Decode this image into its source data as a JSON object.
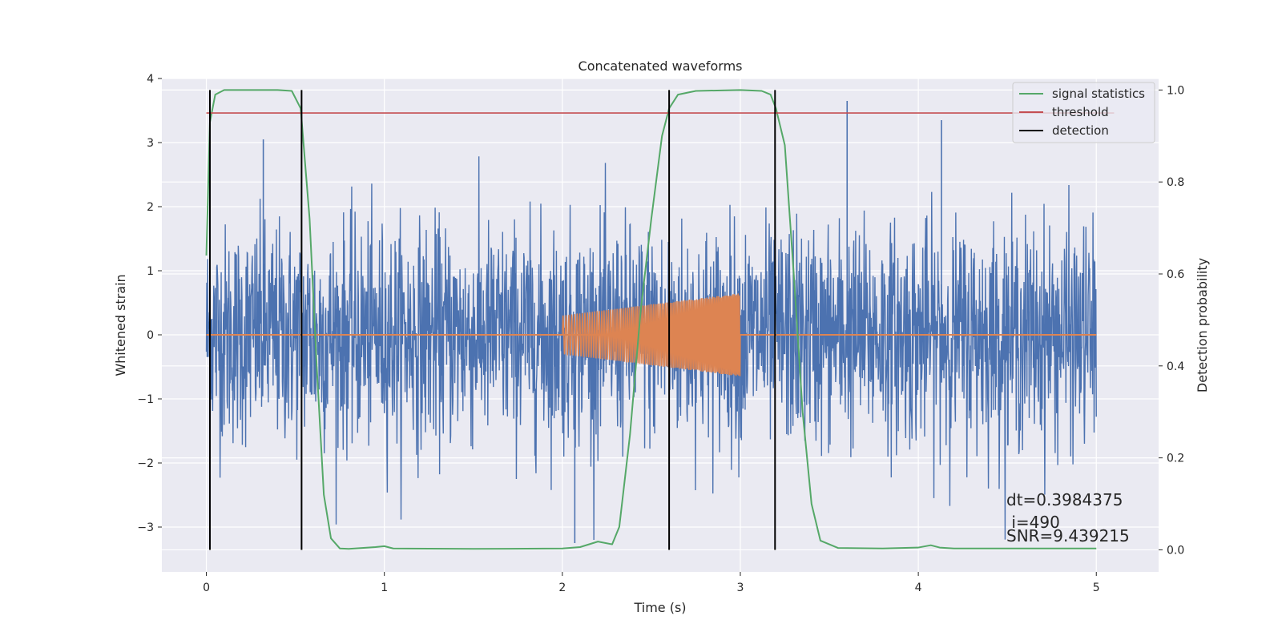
{
  "chart_data": {
    "type": "line",
    "title": "Concatenated waveforms",
    "xlabel": "Time (s)",
    "ylabel_left": "Whitened strain",
    "ylabel_right": "Detection probability",
    "xlim": [
      -0.25,
      5.35
    ],
    "ylim_left": [
      -3.7,
      4.0
    ],
    "ylim_right": [
      -0.048,
      1.025
    ],
    "x_ticks": [
      0,
      1,
      2,
      3,
      4,
      5
    ],
    "y_ticks_left": [
      -3,
      -2,
      -1,
      0,
      1,
      2,
      3,
      4
    ],
    "y_ticks_right": [
      0.0,
      0.2,
      0.4,
      0.6,
      0.8,
      1.0
    ],
    "grid": true,
    "legend_position": "top-right",
    "colors": {
      "background": "#eaeaf2",
      "grid": "#ffffff",
      "noise": "#4c72b0",
      "injection": "#dd8452",
      "signal_statistics": "#55a868",
      "threshold": "#c44e52",
      "detection": "#000000"
    },
    "series": [
      {
        "name": "signal statistics",
        "axis": "right",
        "x": [
          0.0,
          0.02,
          0.05,
          0.1,
          0.2,
          0.4,
          0.48,
          0.53,
          0.58,
          0.62,
          0.66,
          0.7,
          0.75,
          0.8,
          0.95,
          1.0,
          1.05,
          1.5,
          2.0,
          2.1,
          2.2,
          2.28,
          2.32,
          2.38,
          2.44,
          2.5,
          2.56,
          2.6,
          2.65,
          2.75,
          3.0,
          3.12,
          3.17,
          3.2,
          3.25,
          3.3,
          3.35,
          3.4,
          3.45,
          3.55,
          3.8,
          4.0,
          4.07,
          4.12,
          4.2,
          5.0
        ],
        "values": [
          0.64,
          0.93,
          0.99,
          1.0,
          1.0,
          1.0,
          0.998,
          0.96,
          0.72,
          0.4,
          0.12,
          0.025,
          0.003,
          0.002,
          0.006,
          0.008,
          0.003,
          0.002,
          0.003,
          0.006,
          0.018,
          0.012,
          0.05,
          0.25,
          0.52,
          0.72,
          0.9,
          0.96,
          0.99,
          0.998,
          1.0,
          0.998,
          0.99,
          0.96,
          0.88,
          0.6,
          0.3,
          0.1,
          0.02,
          0.004,
          0.003,
          0.005,
          0.01,
          0.005,
          0.003,
          0.003
        ]
      },
      {
        "name": "threshold",
        "axis": "right",
        "x": [
          0,
          5.1
        ],
        "values": [
          0.95,
          0.95
        ]
      },
      {
        "name": "detection",
        "axis": "right",
        "x": [
          0.02,
          0.535,
          2.6,
          3.195
        ],
        "ymin": 0.0,
        "ymax": 1.0
      },
      {
        "axis": "left",
        "kind": "noise",
        "x_start": 0,
        "x_end": 5,
        "amplitude_range": [
          -3.3,
          3.7
        ],
        "peak_values": [
          3.65,
          3.35,
          3.05,
          -3.25
        ]
      },
      {
        "axis": "left",
        "kind": "chirp",
        "x_start": 2.0,
        "x_end": 3.0,
        "amplitude_start": 0.3,
        "amplitude_end": 0.65
      }
    ],
    "annotations": [
      "dt=0.3984375",
      " i=490",
      "SNR=9.439215"
    ]
  }
}
